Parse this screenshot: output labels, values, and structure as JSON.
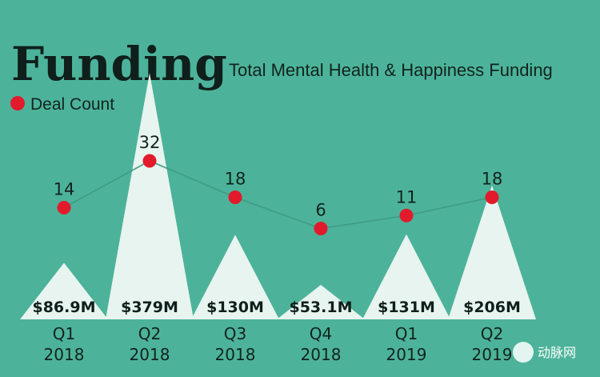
{
  "chart_data": {
    "type": "area",
    "title": "Funding",
    "subtitle": "Total Mental Health & Happiness Funding",
    "legend": {
      "label": "Deal Count",
      "color": "#e11b2b",
      "placement": "top-left"
    },
    "categories": [
      {
        "quarter": "Q1",
        "year": "2018"
      },
      {
        "quarter": "Q2",
        "year": "2018"
      },
      {
        "quarter": "Q3",
        "year": "2018"
      },
      {
        "quarter": "Q4",
        "year": "2018"
      },
      {
        "quarter": "Q1",
        "year": "2019"
      },
      {
        "quarter": "Q2",
        "year": "2019"
      }
    ],
    "funding_millions": [
      86.9,
      379,
      130,
      53.1,
      131,
      206
    ],
    "funding_labels": [
      "$86.9M",
      "$379M",
      "$130M",
      "$53.1M",
      "$131M",
      "$206M"
    ],
    "deal_count": [
      14,
      32,
      18,
      6,
      11,
      18
    ],
    "colors": {
      "background": "#4cb39a",
      "funding": "#e8f4ef",
      "deal_point": "#e11b2b",
      "deal_line": "#3f9a84"
    }
  },
  "watermark": {
    "text": "动脉网"
  }
}
